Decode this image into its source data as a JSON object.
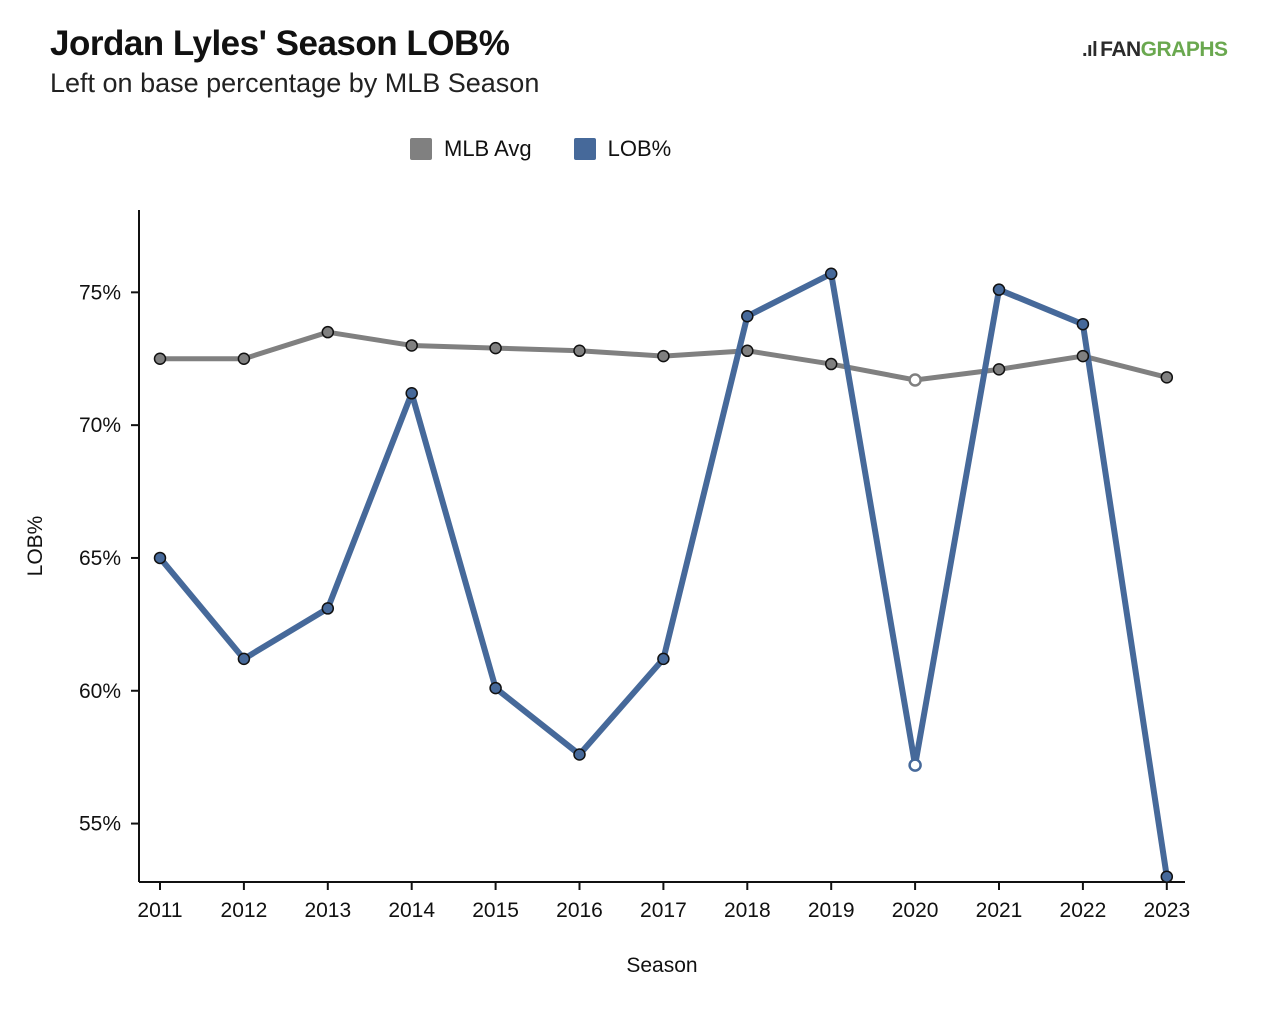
{
  "header": {
    "title": "Jordan Lyles' Season LOB%",
    "subtitle": "Left on base percentage by MLB Season",
    "logo_text_dark": "FAN",
    "logo_text_green": "GRAPHS"
  },
  "colors": {
    "mlb_avg": "#808080",
    "lob": "#46699a",
    "marker_stroke": "#111111",
    "open_marker_fill": "#ffffff"
  },
  "chart_data": {
    "type": "line",
    "title": "Jordan Lyles' Season LOB%",
    "subtitle": "Left on base percentage by MLB Season",
    "xlabel": "Season",
    "ylabel": "LOB%",
    "categories": [
      "2011",
      "2012",
      "2013",
      "2014",
      "2015",
      "2016",
      "2017",
      "2018",
      "2019",
      "2020",
      "2021",
      "2022",
      "2023"
    ],
    "ylim": [
      52.8,
      78.1
    ],
    "yticks": [
      55,
      60,
      65,
      70,
      75
    ],
    "ytick_labels": [
      "55%",
      "60%",
      "65%",
      "70%",
      "75%"
    ],
    "grid": false,
    "legend_position": "top-center",
    "series": [
      {
        "name": "MLB Avg",
        "color": "#808080",
        "values": [
          72.5,
          72.5,
          73.5,
          73.0,
          72.9,
          72.8,
          72.6,
          72.8,
          72.3,
          71.7,
          72.1,
          72.6,
          71.8
        ],
        "open_markers": [
          9
        ]
      },
      {
        "name": "LOB%",
        "color": "#46699a",
        "values": [
          65.0,
          61.2,
          63.1,
          71.2,
          60.1,
          57.6,
          61.2,
          74.1,
          75.7,
          57.2,
          75.1,
          73.8,
          53.0
        ],
        "open_markers": [
          9
        ]
      }
    ]
  }
}
